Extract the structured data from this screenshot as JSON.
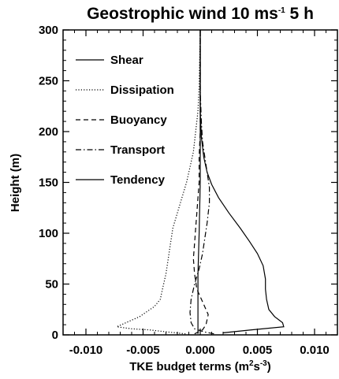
{
  "chart_data": {
    "type": "line",
    "title_main": "Geostrophic wind 10 ms",
    "title_sup": "-1",
    "title_tail": " 5 h",
    "xlabel_main": "TKE budget terms (m",
    "xlabel_sup1": "2",
    "xlabel_mid": "s",
    "xlabel_sup2": "-3",
    "xlabel_tail": ")",
    "ylabel": "Height (m)",
    "xlim": [
      -0.012,
      0.012
    ],
    "ylim": [
      0,
      300
    ],
    "xticks": [
      -0.01,
      -0.005,
      0.0,
      0.005,
      0.01
    ],
    "xtick_labels": [
      "-0.010",
      "-0.005",
      "0.000",
      "0.005",
      "0.010"
    ],
    "yticks": [
      0,
      50,
      100,
      150,
      200,
      250,
      300
    ],
    "ytick_labels": [
      "0",
      "50",
      "100",
      "150",
      "200",
      "250",
      "300"
    ],
    "grid": false,
    "legend_position": "top-left",
    "series": [
      {
        "name": "Shear",
        "dash": "solid",
        "points": [
          [
            0.002,
            2
          ],
          [
            0.0045,
            5
          ],
          [
            0.0073,
            8
          ],
          [
            0.0072,
            12
          ],
          [
            0.0065,
            18
          ],
          [
            0.006,
            25
          ],
          [
            0.0058,
            35
          ],
          [
            0.0057,
            45
          ],
          [
            0.0057,
            55
          ],
          [
            0.0055,
            68
          ],
          [
            0.005,
            80
          ],
          [
            0.0043,
            92
          ],
          [
            0.0035,
            105
          ],
          [
            0.0025,
            120
          ],
          [
            0.0016,
            135
          ],
          [
            0.001,
            148
          ],
          [
            0.0006,
            160
          ],
          [
            0.0003,
            175
          ],
          [
            0.0001,
            195
          ],
          [
            0.0,
            220
          ],
          [
            0.0,
            300
          ]
        ]
      },
      {
        "name": "Dissipation",
        "dash": "dotted",
        "points": [
          [
            -0.0013,
            1
          ],
          [
            -0.003,
            3
          ],
          [
            -0.0045,
            5
          ],
          [
            -0.006,
            6
          ],
          [
            -0.0073,
            8
          ],
          [
            -0.0065,
            12
          ],
          [
            -0.0053,
            18
          ],
          [
            -0.004,
            28
          ],
          [
            -0.0035,
            35
          ],
          [
            -0.0033,
            45
          ],
          [
            -0.003,
            60
          ],
          [
            -0.0028,
            75
          ],
          [
            -0.0026,
            90
          ],
          [
            -0.0024,
            105
          ],
          [
            -0.002,
            120
          ],
          [
            -0.0016,
            135
          ],
          [
            -0.0012,
            150
          ],
          [
            -0.0009,
            165
          ],
          [
            -0.0006,
            180
          ],
          [
            -0.0004,
            200
          ],
          [
            -0.0002,
            220
          ],
          [
            -0.0001,
            245
          ],
          [
            0.0,
            300
          ]
        ]
      },
      {
        "name": "Buoyancy",
        "dash": "dashed",
        "points": [
          [
            -0.0005,
            1
          ],
          [
            0.0002,
            5
          ],
          [
            0.0005,
            10
          ],
          [
            0.0007,
            20
          ],
          [
            0.0003,
            30
          ],
          [
            -0.0003,
            45
          ],
          [
            -0.0005,
            60
          ],
          [
            -0.0006,
            75
          ],
          [
            -0.0005,
            90
          ],
          [
            -0.0004,
            105
          ],
          [
            -0.0003,
            120
          ],
          [
            -0.0002,
            135
          ],
          [
            -0.0001,
            150
          ],
          [
            -0.0001,
            175
          ],
          [
            0.0,
            200
          ],
          [
            0.0,
            300
          ]
        ]
      },
      {
        "name": "Transport",
        "dash": "dashdot",
        "points": [
          [
            0.0012,
            1
          ],
          [
            0.0003,
            3
          ],
          [
            -0.0005,
            6
          ],
          [
            -0.0008,
            12
          ],
          [
            -0.0009,
            22
          ],
          [
            -0.0008,
            35
          ],
          [
            -0.0005,
            50
          ],
          [
            -0.0001,
            65
          ],
          [
            0.0002,
            80
          ],
          [
            0.0004,
            95
          ],
          [
            0.0006,
            110
          ],
          [
            0.0008,
            130
          ],
          [
            0.0008,
            145
          ],
          [
            0.0006,
            160
          ],
          [
            0.0004,
            175
          ],
          [
            0.0002,
            190
          ],
          [
            0.0001,
            210
          ],
          [
            0.0,
            240
          ],
          [
            0.0,
            300
          ]
        ]
      },
      {
        "name": "Tendency",
        "dash": "solid",
        "points": [
          [
            -0.0002,
            1
          ],
          [
            -0.0002,
            20
          ],
          [
            -0.0002,
            60
          ],
          [
            -0.0001,
            100
          ],
          [
            0.0,
            150
          ],
          [
            0.0,
            300
          ]
        ]
      }
    ]
  }
}
